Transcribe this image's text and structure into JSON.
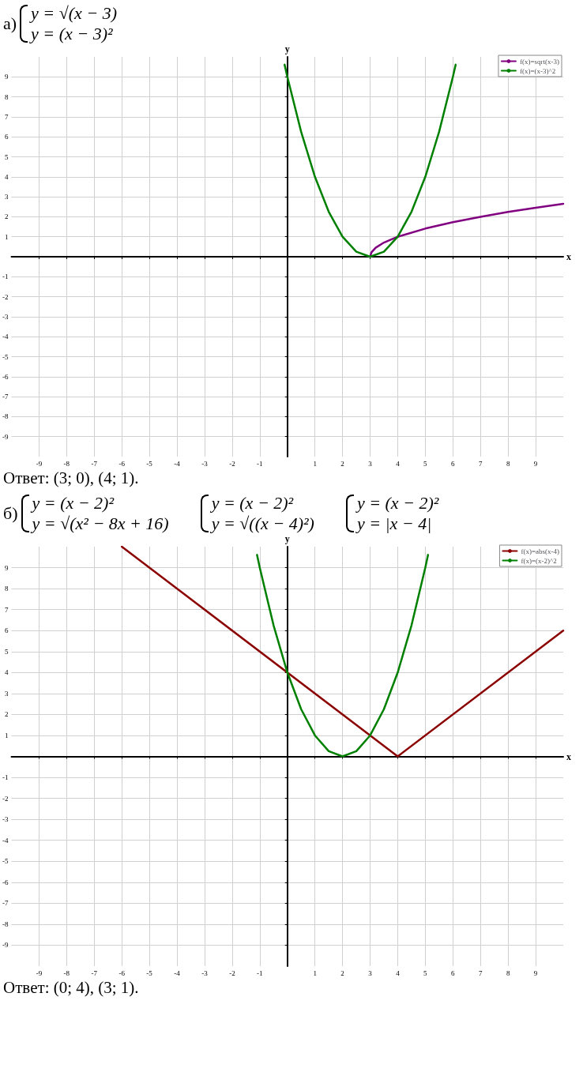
{
  "chart_data": [
    {
      "type": "line",
      "title": "а)",
      "subtitle": "y = √(x − 3)\ny = (x − 3)²",
      "xlabel": "x",
      "ylabel": "y",
      "xlim": [
        -10,
        10
      ],
      "ylim": [
        -10,
        10
      ],
      "xticks": [
        -9,
        -8,
        -7,
        -6,
        -5,
        -4,
        -3,
        -2,
        -1,
        {
          "value": 0,
          "label": null
        },
        1,
        2,
        3,
        4,
        5,
        6,
        7,
        8,
        9
      ],
      "yticks": [
        -9,
        -8,
        -7,
        -6,
        -5,
        -4,
        -3,
        -2,
        -1,
        {
          "value": 0,
          "label": null
        },
        1,
        2,
        3,
        4,
        5,
        6,
        7,
        8,
        9
      ],
      "series": [
        {
          "name": "f(x)=sqrt(x-3)",
          "color": "#800080",
          "x": [
            3,
            3.05,
            3.2,
            3.5,
            4,
            5,
            6,
            7,
            8,
            9,
            10
          ],
          "values": [
            0,
            0.22,
            0.45,
            0.71,
            1,
            1.41,
            1.73,
            2,
            2.24,
            2.45,
            2.65
          ]
        },
        {
          "name": "f(x)=(x-3)^2",
          "color": "#008000",
          "x": [
            -0.1,
            0,
            0.5,
            1,
            1.5,
            2,
            2.5,
            3,
            3.5,
            4,
            4.5,
            5,
            5.5,
            6,
            6.1
          ],
          "values": [
            9.61,
            9,
            6.25,
            4,
            2.25,
            1,
            0.25,
            0,
            0.25,
            1,
            2.25,
            4,
            6.25,
            9,
            9.61
          ]
        }
      ],
      "grid": true,
      "legend": "top right",
      "marker": "none",
      "line_style": "solid",
      "annotations": [
        "Ответ: (3; 0), (4; 1)."
      ]
    },
    {
      "type": "line",
      "title": "б)",
      "subtitle": "y = (x − 2)²\ny = √(x² − 8x + 16)",
      "xlabel": "x",
      "ylabel": "y",
      "xlim": [
        -10,
        10
      ],
      "ylim": [
        -10,
        10
      ],
      "xticks": [
        -9,
        -8,
        -7,
        -6,
        -5,
        -4,
        -3,
        -2,
        -1,
        {
          "value": 0,
          "label": null
        },
        1,
        2,
        3,
        4,
        5,
        6,
        7,
        8,
        9
      ],
      "yticks": [
        -9,
        -8,
        -7,
        -6,
        -5,
        -4,
        -3,
        -2,
        -1,
        {
          "value": 0,
          "label": null
        },
        1,
        2,
        3,
        4,
        5,
        6,
        7,
        8,
        9
      ],
      "series": [
        {
          "name": "f(x)=abs(x-4)",
          "color": "#8b0000",
          "x": [
            -6,
            4,
            10
          ],
          "values": [
            10,
            0,
            6
          ]
        },
        {
          "name": "f(x)=(x-2)^2",
          "color": "#008000",
          "x": [
            -1.1,
            -1,
            -0.5,
            0,
            0.5,
            1,
            1.5,
            2,
            2.5,
            3,
            3.5,
            4,
            4.5,
            5,
            5.1
          ],
          "values": [
            9.61,
            9,
            6.25,
            4,
            2.25,
            1,
            0.25,
            0,
            0.25,
            1,
            2.25,
            4,
            6.25,
            9,
            9.61
          ]
        }
      ],
      "grid": true,
      "legend": "top right",
      "marker": "none",
      "line_style": "solid",
      "annotations": [
        "y = (x − 2)²\ny = √((x − 4)²)",
        "y = (x − 2)²\ny = |x − 4|",
        "Ответ: (0; 4), (3; 1)."
      ]
    }
  ]
}
